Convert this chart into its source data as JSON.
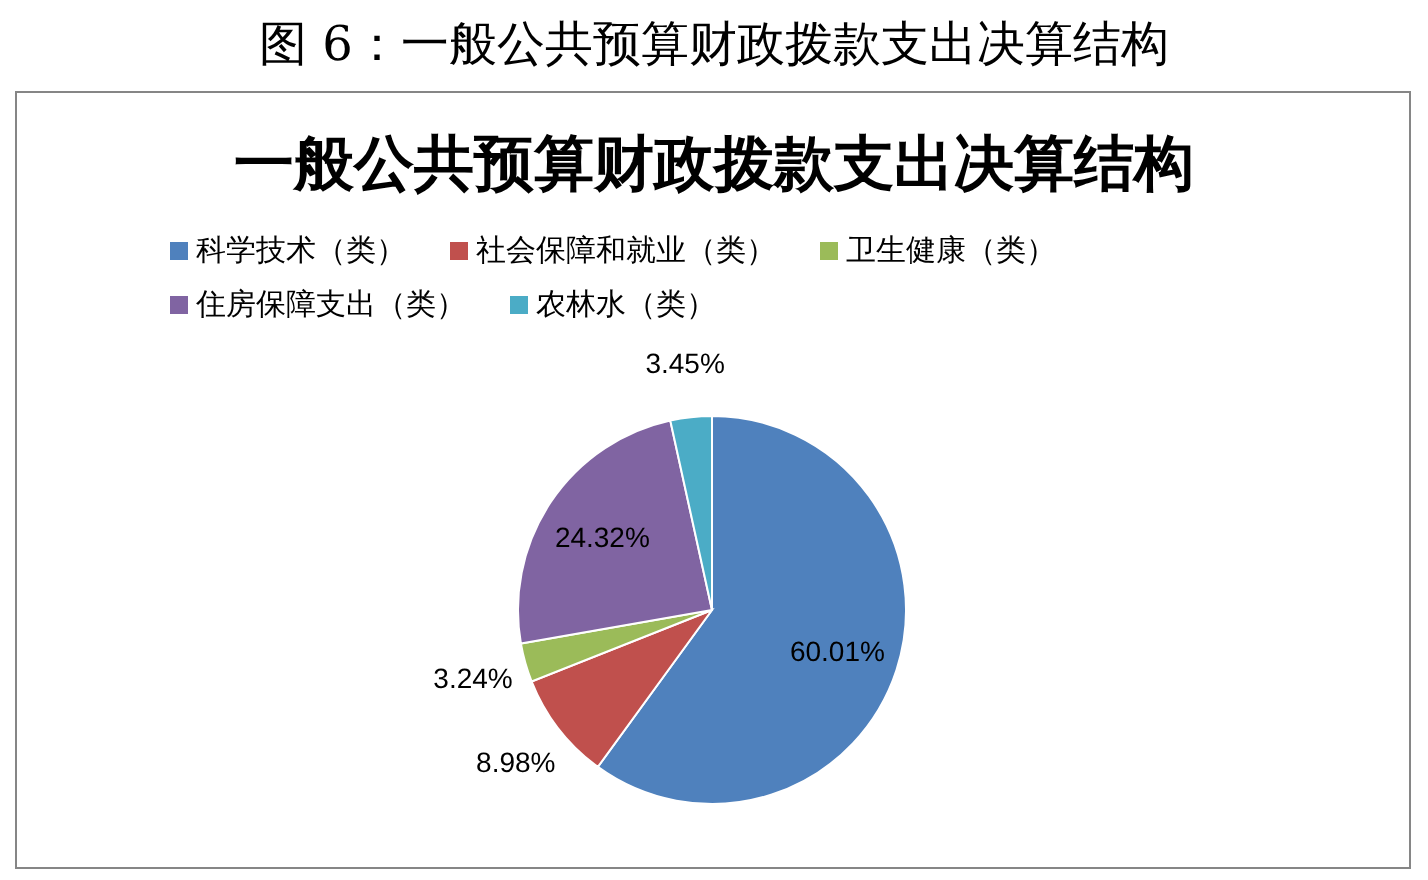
{
  "chart_data": {
    "type": "pie",
    "title": "一般公共预算财政拨款支出决算结构",
    "annotations": [
      "图 6：一般公共预算财政拨款支出决算结构"
    ],
    "categories": [
      "科学技术（类）",
      "社会保障和就业（类）",
      "卫生健康（类）",
      "住房保障支出（类）",
      "农林水（类）"
    ],
    "values": [
      60.01,
      8.98,
      3.24,
      24.32,
      3.45
    ],
    "colors": [
      "#4f81bd",
      "#c0504d",
      "#9bbb59",
      "#8064a2",
      "#4bacc6"
    ],
    "value_labels": [
      "60.01%",
      "8.98%",
      "3.24%",
      "24.32%",
      "3.45%"
    ],
    "legend": "top"
  }
}
